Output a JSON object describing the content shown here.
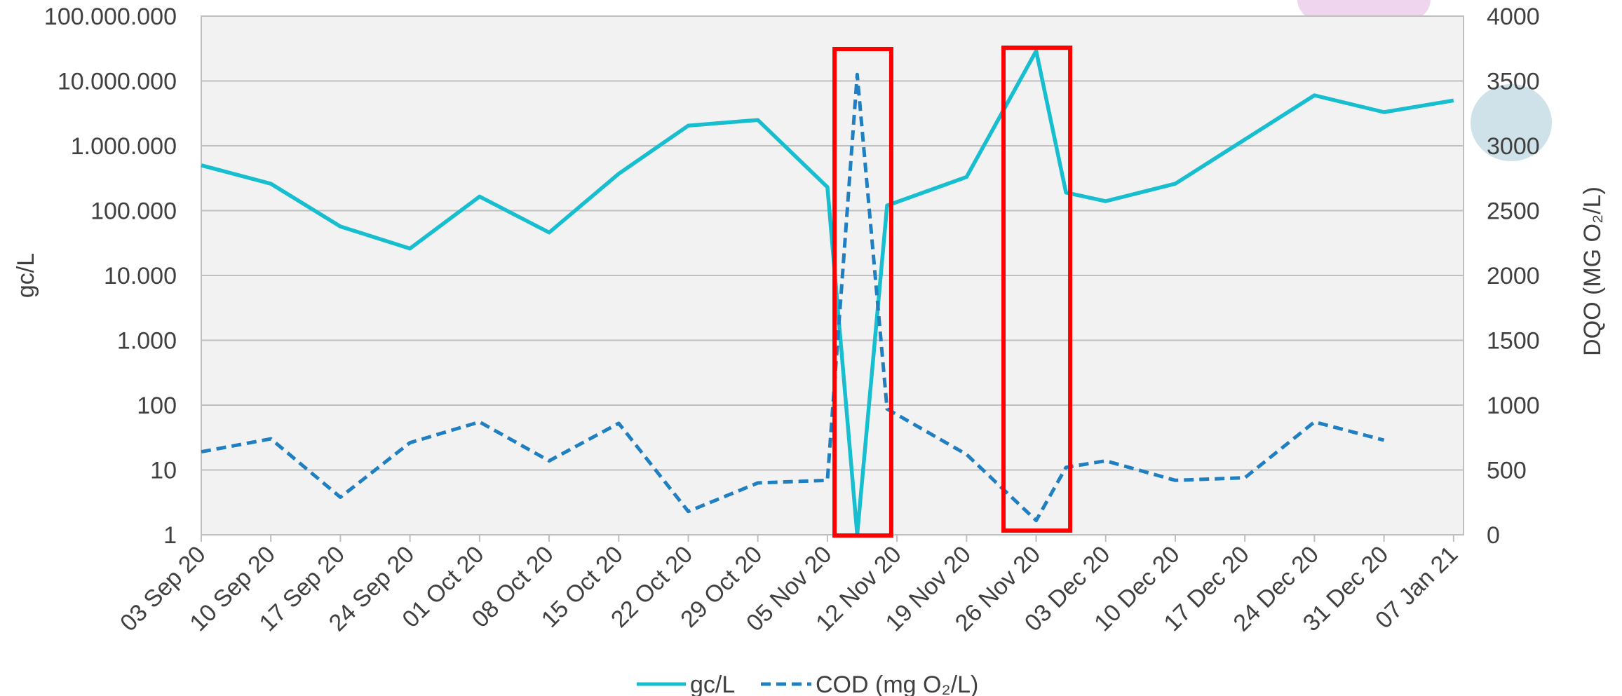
{
  "chart_data": {
    "type": "line",
    "xlabel": "",
    "y_left_label": "gc/L",
    "y_right_label": "DQO (MG O₂/L)",
    "y_left_scale": "log",
    "y_left_range": [
      1,
      100000000
    ],
    "y_left_ticks": [
      "1",
      "10",
      "100",
      "1.000",
      "10.000",
      "100.000",
      "1.000.000",
      "10.000.000",
      "100.000.000"
    ],
    "y_right_range": [
      0,
      4000
    ],
    "y_right_ticks": [
      "0",
      "500",
      "1000",
      "1500",
      "2000",
      "2500",
      "3000",
      "3500",
      "4000"
    ],
    "grid": true,
    "legend_position": "bottom",
    "x_tick_labels": [
      "03 Sep 20",
      "10 Sep 20",
      "17 Sep 20",
      "24 Sep 20",
      "01 Oct 20",
      "08 Oct 20",
      "15 Oct 20",
      "22 Oct 20",
      "29 Oct 20",
      "05 Nov 20",
      "12 Nov 20",
      "19 Nov 20",
      "26 Nov 20",
      "03 Dec 20",
      "10 Dec 20",
      "17 Dec 20",
      "24 Dec 20",
      "31 Dec 20",
      "07 Jan 21"
    ],
    "series": [
      {
        "name": "gc/L",
        "axis": "left",
        "color": "#17BECF",
        "style": "solid",
        "points": [
          [
            "2020-09-03",
            500000
          ],
          [
            "2020-09-10",
            260000
          ],
          [
            "2020-09-17",
            57000
          ],
          [
            "2020-09-24",
            26000
          ],
          [
            "2020-10-01",
            165000
          ],
          [
            "2020-10-08",
            46000
          ],
          [
            "2020-10-15",
            370000
          ],
          [
            "2020-10-22",
            2050000
          ],
          [
            "2020-10-29",
            2500000
          ],
          [
            "2020-11-05",
            230000
          ],
          [
            "2020-11-08",
            1
          ],
          [
            "2020-11-11",
            120000
          ],
          [
            "2020-11-19",
            330000
          ],
          [
            "2020-11-26",
            29000000
          ],
          [
            "2020-11-29",
            190000
          ],
          [
            "2020-12-03",
            140000
          ],
          [
            "2020-12-10",
            260000
          ],
          [
            "2020-12-17",
            1250000
          ],
          [
            "2020-12-24",
            6000000
          ],
          [
            "2020-12-31",
            3300000
          ],
          [
            "2021-01-07",
            5000000
          ]
        ]
      },
      {
        "name": "COD (mg O₂/L)",
        "axis": "right",
        "color": "#1F7FC1",
        "style": "dashed",
        "points": [
          [
            "2020-09-03",
            640
          ],
          [
            "2020-09-10",
            740
          ],
          [
            "2020-09-17",
            290
          ],
          [
            "2020-09-24",
            710
          ],
          [
            "2020-10-01",
            870
          ],
          [
            "2020-10-08",
            570
          ],
          [
            "2020-10-15",
            860
          ],
          [
            "2020-10-22",
            180
          ],
          [
            "2020-10-29",
            400
          ],
          [
            "2020-11-05",
            420
          ],
          [
            "2020-11-08",
            3550
          ],
          [
            "2020-11-11",
            970
          ],
          [
            "2020-11-19",
            620
          ],
          [
            "2020-11-26",
            110
          ],
          [
            "2020-11-29",
            520
          ],
          [
            "2020-12-03",
            570
          ],
          [
            "2020-12-10",
            420
          ],
          [
            "2020-12-17",
            440
          ],
          [
            "2020-12-24",
            870
          ],
          [
            "2020-12-31",
            730
          ]
        ]
      }
    ],
    "highlight_boxes": [
      {
        "date_range": [
          "2020-11-06",
          "2020-11-11"
        ],
        "color": "#FF0000"
      },
      {
        "date_range": [
          "2020-11-23",
          "2020-11-29"
        ],
        "color": "#FF0000"
      }
    ]
  }
}
